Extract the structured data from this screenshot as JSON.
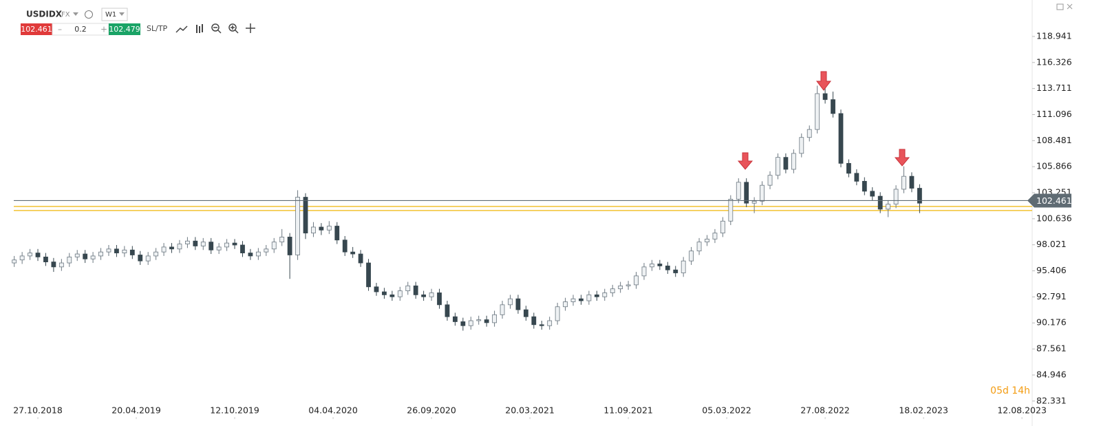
{
  "toolbar": {
    "symbol": "USDIDX",
    "market": "FX",
    "interval": "W1",
    "sell": "102.461",
    "volume": "0.2",
    "buy": "102.479",
    "sltp": "SL/TP"
  },
  "chart_data": {
    "type": "candlestick",
    "up_color": "#eef1f3",
    "up_stroke": "#6b7780",
    "down_color": "#37474f",
    "ylim": [
      81.14,
      122.6
    ],
    "yticks": [
      82.331,
      84.946,
      87.561,
      90.176,
      92.791,
      95.406,
      98.021,
      100.636,
      103.251,
      105.866,
      108.481,
      111.096,
      113.711,
      116.326,
      118.941
    ],
    "xlim": [
      -1.81,
      129.3
    ],
    "xticks": [
      {
        "value": 3,
        "label": "27.10.2018"
      },
      {
        "value": 15.5,
        "label": "20.04.2019"
      },
      {
        "value": 28,
        "label": "12.10.2019"
      },
      {
        "value": 40.5,
        "label": "04.04.2020"
      },
      {
        "value": 53,
        "label": "26.09.2020"
      },
      {
        "value": 65.5,
        "label": "20.03.2021"
      },
      {
        "value": 78,
        "label": "11.09.2021"
      },
      {
        "value": 90.5,
        "label": "05.03.2022"
      },
      {
        "value": 103,
        "label": "27.08.2022"
      },
      {
        "value": 115.5,
        "label": "18.02.2023"
      },
      {
        "value": 128,
        "label": "12.08.2023"
      }
    ],
    "price_line": 102.461,
    "price_color": "#5f6b73",
    "support_zone": [
      101.46,
      101.87
    ],
    "support_color": "#f2c230",
    "timer": "05d 14h",
    "ohlc": [
      [
        96.2,
        96.9,
        95.8,
        96.5
      ],
      [
        96.5,
        97.3,
        96.1,
        96.9
      ],
      [
        96.9,
        97.6,
        96.5,
        97.2
      ],
      [
        97.2,
        97.6,
        96.4,
        96.8
      ],
      [
        96.8,
        97.2,
        95.9,
        96.3
      ],
      [
        96.3,
        96.7,
        95.3,
        95.8
      ],
      [
        95.8,
        96.6,
        95.4,
        96.2
      ],
      [
        96.2,
        97.2,
        95.8,
        96.8
      ],
      [
        96.8,
        97.5,
        96.4,
        97.1
      ],
      [
        97.1,
        97.5,
        96.2,
        96.6
      ],
      [
        96.6,
        97.3,
        96.2,
        96.9
      ],
      [
        96.9,
        97.7,
        96.5,
        97.3
      ],
      [
        97.3,
        98.0,
        96.9,
        97.6
      ],
      [
        97.6,
        98.0,
        96.8,
        97.2
      ],
      [
        97.2,
        97.9,
        96.8,
        97.5
      ],
      [
        97.5,
        97.9,
        96.6,
        97.0
      ],
      [
        97.0,
        97.4,
        96.0,
        96.4
      ],
      [
        96.4,
        97.3,
        96.0,
        96.9
      ],
      [
        96.9,
        97.7,
        96.5,
        97.3
      ],
      [
        97.3,
        98.2,
        96.9,
        97.8
      ],
      [
        97.8,
        98.2,
        97.2,
        97.6
      ],
      [
        97.6,
        98.5,
        97.2,
        98.1
      ],
      [
        98.1,
        98.8,
        97.7,
        98.4
      ],
      [
        98.4,
        98.8,
        97.5,
        97.9
      ],
      [
        97.9,
        98.7,
        97.5,
        98.3
      ],
      [
        98.3,
        98.7,
        97.1,
        97.5
      ],
      [
        97.5,
        98.2,
        97.1,
        97.8
      ],
      [
        97.8,
        98.6,
        97.4,
        98.2
      ],
      [
        98.2,
        98.6,
        97.6,
        98.0
      ],
      [
        98.0,
        98.4,
        96.8,
        97.2
      ],
      [
        97.2,
        97.6,
        96.5,
        96.9
      ],
      [
        96.9,
        97.7,
        96.5,
        97.3
      ],
      [
        97.3,
        98.0,
        96.9,
        97.6
      ],
      [
        97.6,
        98.7,
        97.2,
        98.3
      ],
      [
        98.3,
        99.6,
        97.9,
        98.8
      ],
      [
        98.8,
        99.2,
        94.6,
        97.0
      ],
      [
        97.0,
        103.5,
        96.5,
        102.8
      ],
      [
        102.8,
        103.2,
        98.6,
        99.2
      ],
      [
        99.2,
        100.3,
        98.8,
        99.8
      ],
      [
        99.8,
        100.2,
        99.0,
        99.5
      ],
      [
        99.5,
        100.4,
        99.1,
        99.9
      ],
      [
        99.9,
        100.3,
        98.1,
        98.5
      ],
      [
        98.5,
        98.9,
        96.9,
        97.3
      ],
      [
        97.3,
        97.8,
        96.7,
        97.1
      ],
      [
        97.1,
        97.5,
        95.8,
        96.2
      ],
      [
        96.2,
        96.6,
        93.4,
        93.8
      ],
      [
        93.8,
        94.2,
        92.9,
        93.3
      ],
      [
        93.3,
        93.7,
        92.6,
        93.0
      ],
      [
        93.0,
        93.4,
        92.4,
        92.8
      ],
      [
        92.8,
        93.8,
        92.4,
        93.4
      ],
      [
        93.4,
        94.3,
        93.0,
        93.9
      ],
      [
        93.9,
        94.3,
        92.6,
        93.0
      ],
      [
        93.0,
        93.4,
        92.4,
        92.8
      ],
      [
        92.8,
        93.6,
        92.4,
        93.2
      ],
      [
        93.2,
        93.6,
        91.6,
        92.0
      ],
      [
        92.0,
        92.4,
        90.4,
        90.8
      ],
      [
        90.8,
        91.2,
        89.9,
        90.3
      ],
      [
        90.3,
        90.7,
        89.4,
        89.9
      ],
      [
        89.9,
        90.8,
        89.5,
        90.4
      ],
      [
        90.4,
        90.9,
        90.0,
        90.5
      ],
      [
        90.5,
        90.9,
        89.8,
        90.2
      ],
      [
        90.2,
        91.4,
        89.8,
        91.0
      ],
      [
        91.0,
        92.4,
        90.6,
        92.0
      ],
      [
        92.0,
        93.0,
        91.6,
        92.6
      ],
      [
        92.6,
        93.0,
        91.1,
        91.5
      ],
      [
        91.5,
        91.9,
        90.4,
        90.8
      ],
      [
        90.8,
        91.2,
        89.6,
        90.0
      ],
      [
        90.0,
        90.4,
        89.5,
        89.9
      ],
      [
        89.9,
        90.8,
        89.5,
        90.4
      ],
      [
        90.4,
        92.2,
        90.0,
        91.8
      ],
      [
        91.8,
        92.7,
        91.4,
        92.3
      ],
      [
        92.3,
        93.0,
        91.9,
        92.6
      ],
      [
        92.6,
        93.0,
        92.0,
        92.4
      ],
      [
        92.4,
        93.4,
        92.0,
        93.0
      ],
      [
        93.0,
        93.4,
        92.4,
        92.8
      ],
      [
        92.8,
        93.6,
        92.4,
        93.2
      ],
      [
        93.2,
        94.0,
        92.8,
        93.6
      ],
      [
        93.6,
        94.3,
        93.2,
        93.9
      ],
      [
        93.9,
        94.4,
        93.5,
        94.0
      ],
      [
        94.0,
        95.3,
        93.6,
        94.9
      ],
      [
        94.9,
        96.2,
        94.5,
        95.8
      ],
      [
        95.8,
        96.5,
        95.4,
        96.1
      ],
      [
        96.1,
        96.5,
        95.5,
        95.9
      ],
      [
        95.9,
        96.3,
        95.1,
        95.5
      ],
      [
        95.5,
        95.9,
        94.8,
        95.2
      ],
      [
        95.2,
        96.8,
        94.8,
        96.4
      ],
      [
        96.4,
        97.8,
        96.0,
        97.4
      ],
      [
        97.4,
        98.7,
        97.0,
        98.3
      ],
      [
        98.3,
        99.0,
        97.9,
        98.6
      ],
      [
        98.6,
        99.6,
        98.2,
        99.2
      ],
      [
        99.2,
        100.8,
        98.8,
        100.4
      ],
      [
        100.4,
        103.0,
        100.0,
        102.6
      ],
      [
        102.6,
        104.7,
        102.2,
        104.3
      ],
      [
        104.3,
        104.7,
        101.8,
        102.2
      ],
      [
        102.2,
        102.8,
        101.2,
        102.4
      ],
      [
        102.4,
        104.4,
        102.0,
        104.0
      ],
      [
        104.0,
        105.4,
        103.6,
        105.0
      ],
      [
        105.0,
        107.2,
        104.6,
        106.8
      ],
      [
        106.8,
        107.2,
        105.2,
        105.6
      ],
      [
        105.6,
        107.6,
        105.2,
        107.2
      ],
      [
        107.2,
        109.2,
        106.8,
        108.8
      ],
      [
        108.8,
        110.0,
        108.4,
        109.6
      ],
      [
        109.6,
        114.0,
        109.2,
        113.2
      ],
      [
        113.2,
        114.8,
        112.2,
        112.6
      ],
      [
        112.6,
        113.4,
        110.8,
        111.2
      ],
      [
        111.2,
        111.6,
        105.8,
        106.2
      ],
      [
        106.2,
        106.6,
        104.8,
        105.2
      ],
      [
        105.2,
        105.6,
        104.0,
        104.4
      ],
      [
        104.4,
        104.8,
        103.0,
        103.4
      ],
      [
        103.4,
        103.8,
        102.5,
        102.9
      ],
      [
        102.9,
        103.3,
        101.2,
        101.6
      ],
      [
        101.6,
        102.5,
        100.8,
        102.1
      ],
      [
        102.1,
        104.0,
        101.7,
        103.6
      ],
      [
        103.6,
        105.9,
        103.2,
        104.9
      ],
      [
        104.9,
        105.3,
        103.3,
        103.7
      ],
      [
        103.7,
        104.1,
        101.2,
        102.2
      ]
    ]
  }
}
